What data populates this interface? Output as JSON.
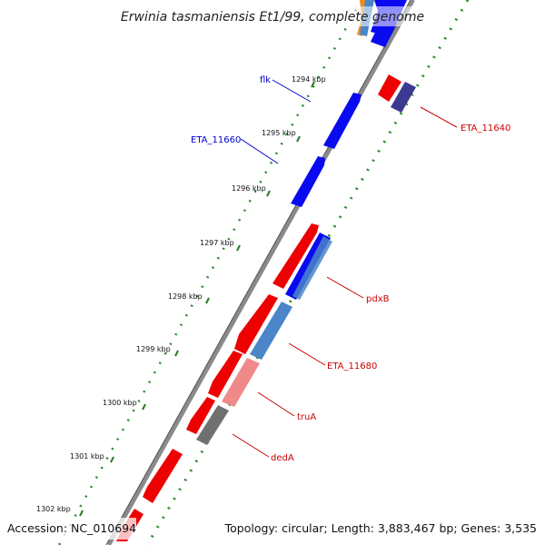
{
  "title": "Erwinia tasmaniensis Et1/99, complete genome",
  "accession": "Accession: NC_010694",
  "summary": "Topology: circular; Length: 3,883,467 bp; Genes: 3,535",
  "colors": {
    "forward_cds": "#0000ee",
    "reverse_cds": "#ee0000",
    "label_forward": "#0000cc",
    "label_reverse": "#cc0000",
    "tick_major": "#006600",
    "backbone": "#888888"
  },
  "ticks": [
    {
      "label": "1294 kbp"
    },
    {
      "label": "1295 kbp"
    },
    {
      "label": "1296 kbp"
    },
    {
      "label": "1297 kbp"
    },
    {
      "label": "1298 kbp"
    },
    {
      "label": "1299 kbp"
    },
    {
      "label": "1300 kbp"
    },
    {
      "label": "1301 kbp"
    },
    {
      "label": "1302 kbp"
    }
  ],
  "gene_labels": [
    {
      "name": "flk",
      "strand": "forward"
    },
    {
      "name": "ETA_11660",
      "strand": "forward"
    },
    {
      "name": "ETA_11640",
      "strand": "reverse"
    },
    {
      "name": "pdxB",
      "strand": "reverse"
    },
    {
      "name": "ETA_11680",
      "strand": "reverse"
    },
    {
      "name": "truA",
      "strand": "reverse"
    },
    {
      "name": "dedA",
      "strand": "reverse"
    }
  ]
}
